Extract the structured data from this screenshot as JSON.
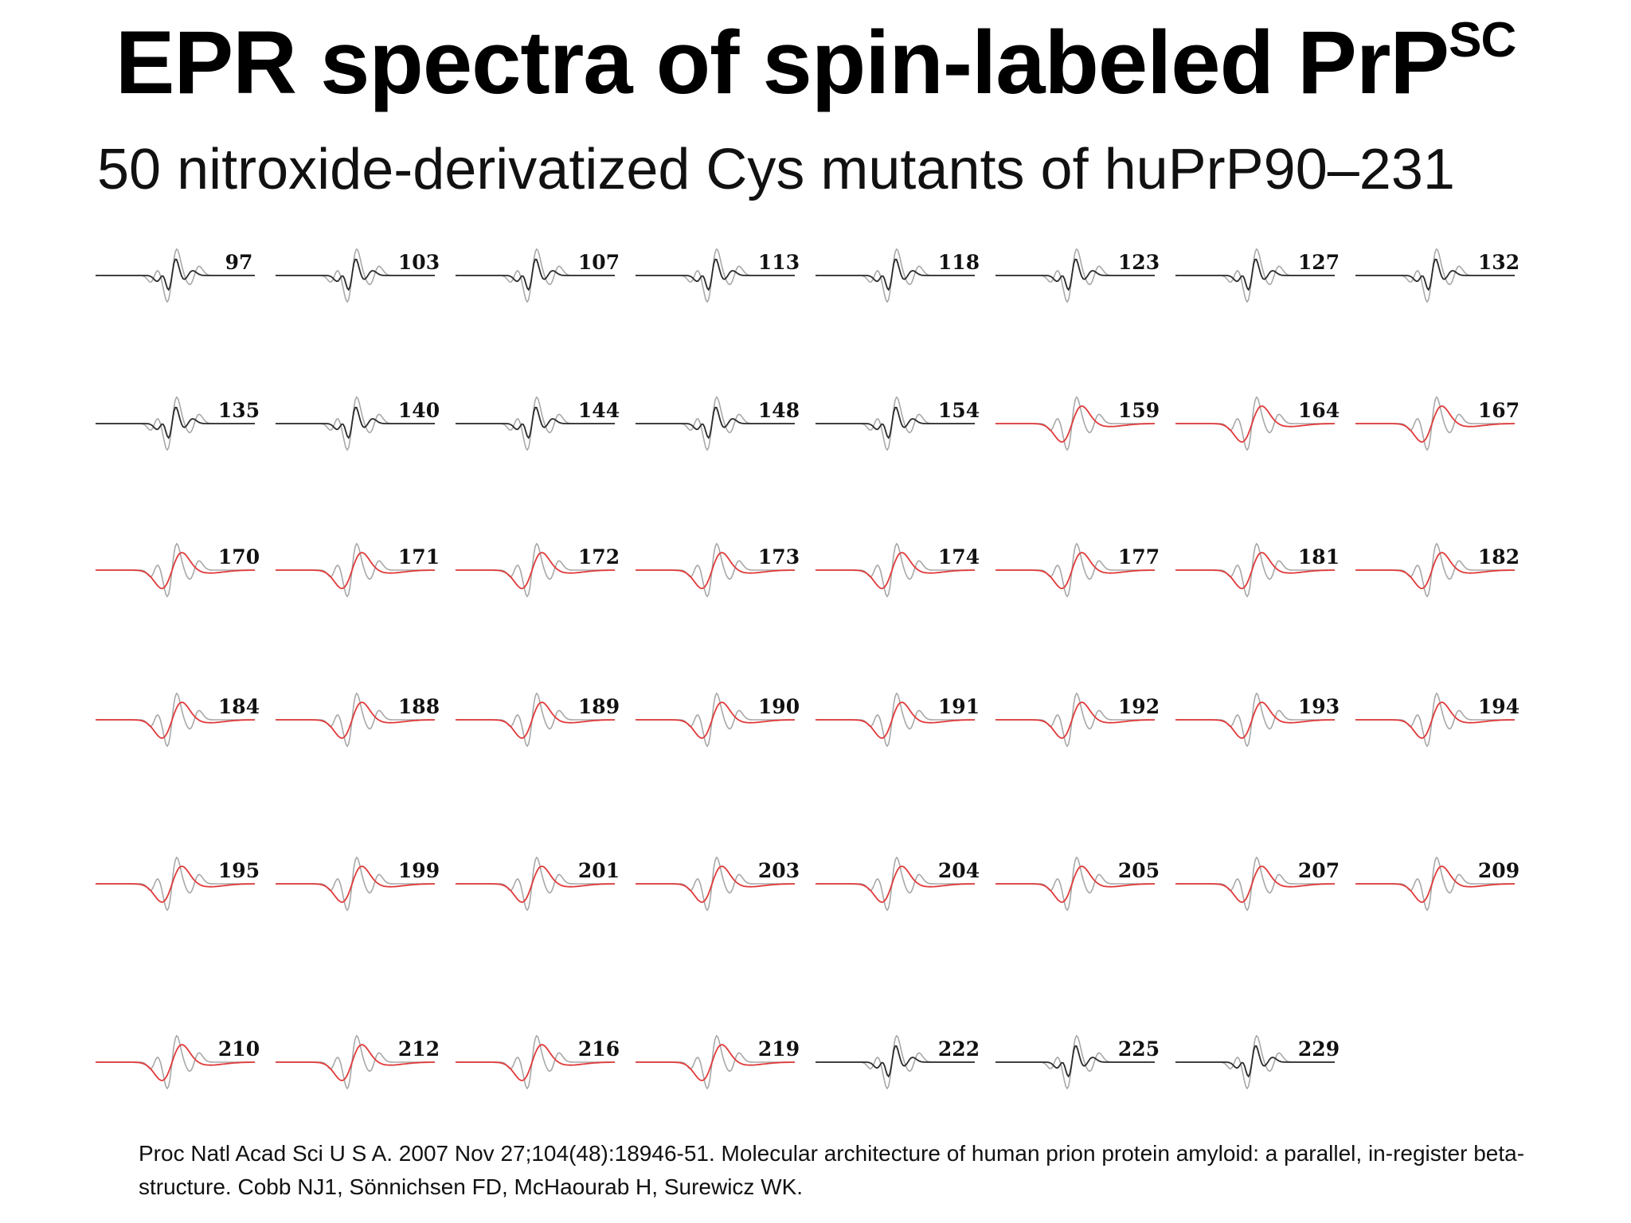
{
  "slide": {
    "title_main": "EPR spectra of spin-labeled PrP",
    "title_sup": "SC",
    "subtitle": "50 nitroxide-derivatized Cys mutants of huPrP90–231",
    "citation": "Proc Natl Acad Sci U S A. 2007 Nov 27;104(48):18946-51. Molecular architecture of human prion protein amyloid: a parallel, in-register beta-structure. Cobb NJ1, Sönnichsen FD, McHaourab H, Surewicz WK."
  },
  "colors": {
    "black_trace": "#2b2b2b",
    "reference_trace": "#a8a8a8",
    "red_trace": "#e03a3a"
  },
  "spectra": [
    {
      "label": "97",
      "color": "black"
    },
    {
      "label": "103",
      "color": "black"
    },
    {
      "label": "107",
      "color": "black"
    },
    {
      "label": "113",
      "color": "black"
    },
    {
      "label": "118",
      "color": "black"
    },
    {
      "label": "123",
      "color": "black"
    },
    {
      "label": "127",
      "color": "black"
    },
    {
      "label": "132",
      "color": "black"
    },
    {
      "label": "135",
      "color": "black"
    },
    {
      "label": "140",
      "color": "black"
    },
    {
      "label": "144",
      "color": "black"
    },
    {
      "label": "148",
      "color": "black"
    },
    {
      "label": "154",
      "color": "black"
    },
    {
      "label": "159",
      "color": "red"
    },
    {
      "label": "164",
      "color": "red"
    },
    {
      "label": "167",
      "color": "red"
    },
    {
      "label": "170",
      "color": "red"
    },
    {
      "label": "171",
      "color": "red"
    },
    {
      "label": "172",
      "color": "red"
    },
    {
      "label": "173",
      "color": "red"
    },
    {
      "label": "174",
      "color": "red"
    },
    {
      "label": "177",
      "color": "red"
    },
    {
      "label": "181",
      "color": "red"
    },
    {
      "label": "182",
      "color": "red"
    },
    {
      "label": "184",
      "color": "red"
    },
    {
      "label": "188",
      "color": "red"
    },
    {
      "label": "189",
      "color": "red"
    },
    {
      "label": "190",
      "color": "red"
    },
    {
      "label": "191",
      "color": "red"
    },
    {
      "label": "192",
      "color": "red"
    },
    {
      "label": "193",
      "color": "red"
    },
    {
      "label": "194",
      "color": "red"
    },
    {
      "label": "195",
      "color": "red"
    },
    {
      "label": "199",
      "color": "red"
    },
    {
      "label": "201",
      "color": "red"
    },
    {
      "label": "203",
      "color": "red"
    },
    {
      "label": "204",
      "color": "red"
    },
    {
      "label": "205",
      "color": "red"
    },
    {
      "label": "207",
      "color": "red"
    },
    {
      "label": "209",
      "color": "red"
    },
    {
      "label": "210",
      "color": "red"
    },
    {
      "label": "212",
      "color": "red"
    },
    {
      "label": "216",
      "color": "red"
    },
    {
      "label": "219",
      "color": "red"
    },
    {
      "label": "222",
      "color": "black"
    },
    {
      "label": "225",
      "color": "black"
    },
    {
      "label": "229",
      "color": "black"
    }
  ]
}
